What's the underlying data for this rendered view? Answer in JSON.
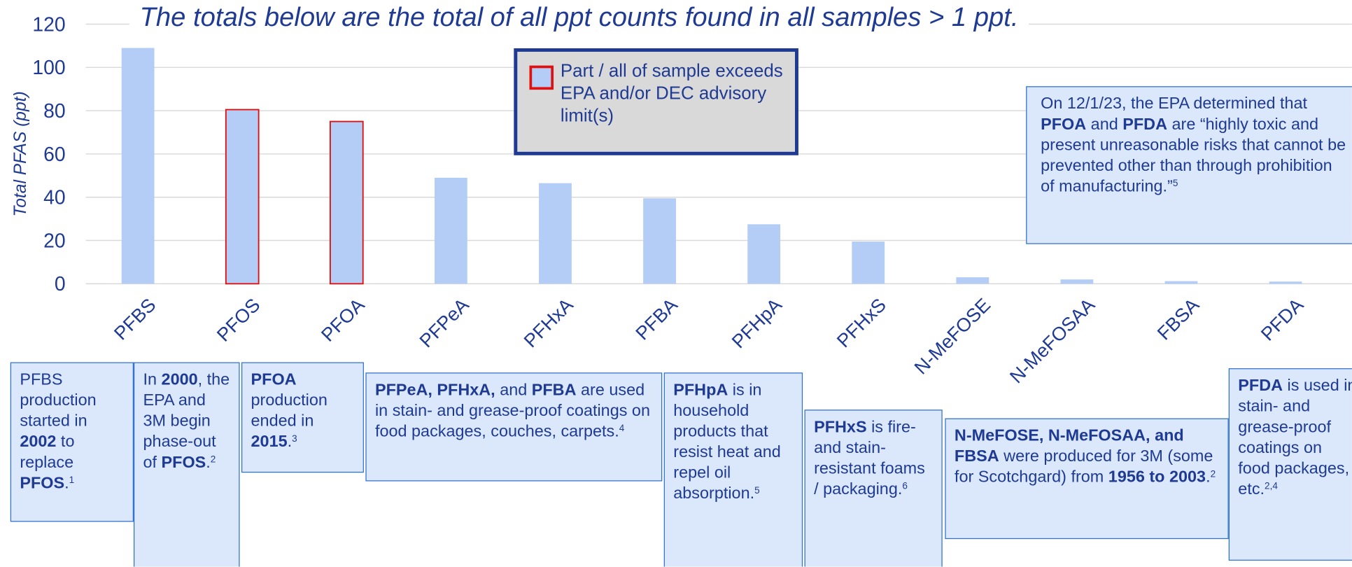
{
  "chart_data": {
    "type": "bar",
    "title": "The totals below are the total of all ppt counts found in all samples > 1 ppt.",
    "y_label": "Total PFAS (ppt)",
    "categories": [
      "PFBS",
      "PFOS",
      "PFOA",
      "PFPeA",
      "PFHxA",
      "PFBA",
      "PFHpA",
      "PFHxS",
      "N-MeFOSE",
      "N-MeFOSAA",
      "FBSA",
      "PFDA"
    ],
    "values": [
      109,
      80.5,
      75,
      49,
      46.5,
      39.5,
      27.5,
      19.5,
      3,
      2,
      1.2,
      1
    ],
    "color": "#b4cdf6",
    "edgecolors": [
      "none",
      "#e01010",
      "#e01010",
      "none",
      "none",
      "none",
      "none",
      "none",
      "none",
      "none",
      "none",
      "none"
    ],
    "ylim": [
      0,
      120
    ],
    "yticks": [
      0,
      20,
      40,
      60,
      80,
      100,
      120
    ],
    "grid": true,
    "legend": {
      "label": "Part / all of sample exceeds EPA and/or DEC advisory limit(s)",
      "color": "#b4cdf6",
      "edgecolor": "#e01010"
    },
    "annotations": [
      {
        "parts": [
          {
            "t": "PFBS production started in "
          },
          {
            "t": "2002",
            "b": true
          },
          {
            "t": " to replace "
          },
          {
            "t": "PFOS",
            "b": true
          },
          {
            "t": ".",
            "b": false
          },
          {
            "t": "1",
            "sup": true
          }
        ]
      },
      {
        "parts": [
          {
            "t": "In "
          },
          {
            "t": "2000",
            "b": true
          },
          {
            "t": ", the EPA and 3M begin phase-out of "
          },
          {
            "t": "PFOS",
            "b": true
          },
          {
            "t": "."
          },
          {
            "t": "2",
            "sup": true
          }
        ]
      },
      {
        "parts": [
          {
            "t": "PFOA",
            "b": true
          },
          {
            "t": " production ended in "
          },
          {
            "t": "2015",
            "b": true
          },
          {
            "t": "."
          },
          {
            "t": "3",
            "sup": true
          }
        ]
      },
      {
        "parts": [
          {
            "t": "PFPeA, PFHxA,",
            "b": true
          },
          {
            "t": " and "
          },
          {
            "t": "PFBA",
            "b": true
          },
          {
            "t": " are used in stain- and grease-proof coatings on food packages, couches, carpets."
          },
          {
            "t": "4",
            "sup": true
          }
        ]
      },
      {
        "parts": [
          {
            "t": "PFHpA",
            "b": true
          },
          {
            "t": " is in household products that resist heat and repel oil absorption."
          },
          {
            "t": "5",
            "sup": true
          }
        ]
      },
      {
        "parts": [
          {
            "t": "PFHxS",
            "b": true
          },
          {
            "t": " is fire- and stain-resistant foams / packaging."
          },
          {
            "t": "6",
            "sup": true
          }
        ]
      },
      {
        "parts": [
          {
            "t": "N-MeFOSE, N-MeFOSAA, and FBSA",
            "b": true
          },
          {
            "t": " were produced for 3M (some for Scotchgard) from "
          },
          {
            "t": "1956 to 2003",
            "b": true
          },
          {
            "t": "."
          },
          {
            "t": "2",
            "sup": true
          }
        ]
      },
      {
        "parts": [
          {
            "t": "PFDA",
            "b": true
          },
          {
            "t": " is used in stain- and grease-proof coatings on food packages, etc."
          },
          {
            "t": "2,4",
            "sup": true
          }
        ]
      },
      {
        "parts": [
          {
            "t": "On 12/1/23, the EPA determined that "
          },
          {
            "t": "PFOA",
            "b": true
          },
          {
            "t": " and "
          },
          {
            "t": "PFDA",
            "b": true
          },
          {
            "t": " are “highly toxic and present unreasonable risks that cannot be prevented other than through prohibition of manufacturing.”"
          },
          {
            "t": "5",
            "sup": true
          }
        ]
      }
    ]
  }
}
